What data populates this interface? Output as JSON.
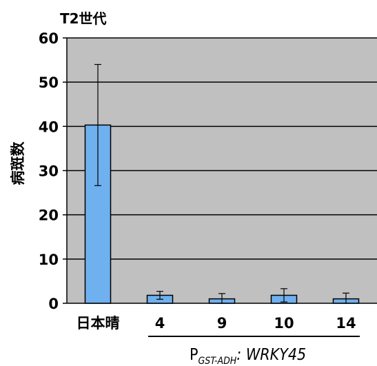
{
  "chart_data": {
    "type": "bar",
    "title": "T2世代",
    "ylabel": "病斑数",
    "xlabel": "",
    "ylim": [
      0,
      60
    ],
    "yticks": [
      "0",
      "10",
      "20",
      "30",
      "40",
      "50",
      "60"
    ],
    "categories": [
      "日本晴",
      "4",
      "9",
      "10",
      "14"
    ],
    "values": [
      40.3,
      1.8,
      1.0,
      1.8,
      1.0
    ],
    "error": [
      13.7,
      0.9,
      1.2,
      1.5,
      1.3
    ],
    "grid": true,
    "group_label": {
      "prefix": "P",
      "subscript": "GST-ADH",
      "suffix": ": WRKY45"
    },
    "colors": {
      "bar": "#6fb0ef",
      "plot_bg": "#c0c0c0",
      "grid": "#000000"
    }
  }
}
